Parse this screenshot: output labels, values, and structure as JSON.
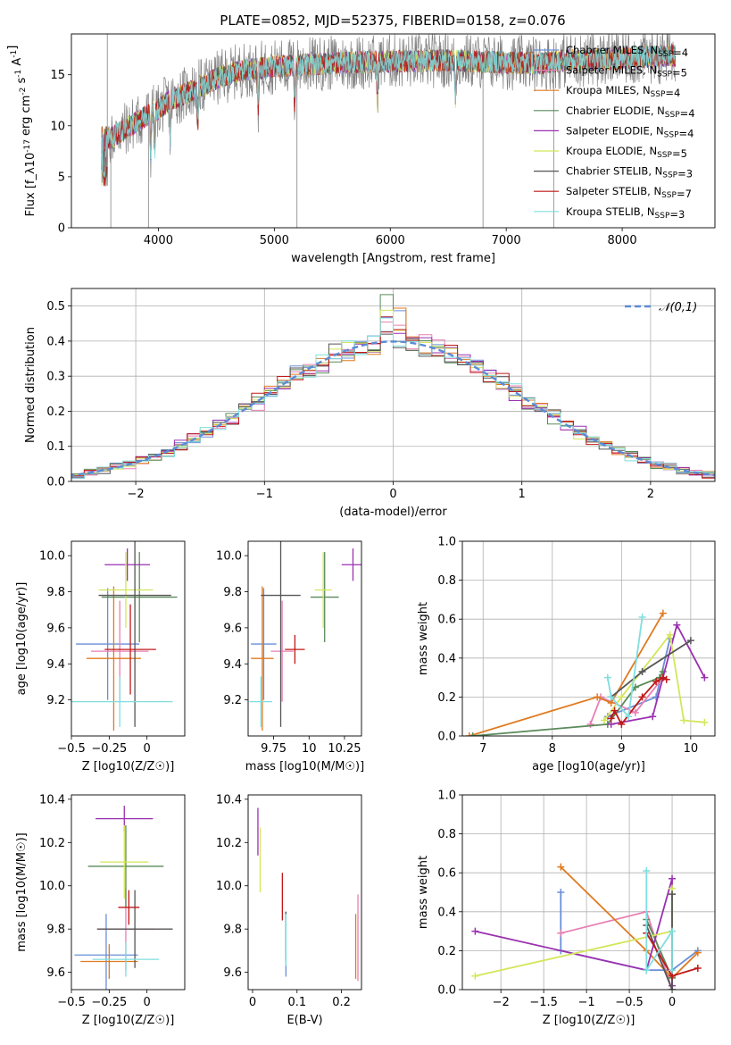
{
  "figure": {
    "title": "PLATE=0852, MJD=52375, FIBERID=0158, z=0.076"
  },
  "legend_models": [
    {
      "imf": "Chabrier",
      "lib": "MILES",
      "n": 4,
      "color": "#6a8fd8"
    },
    {
      "imf": "Salpeter",
      "lib": "MILES",
      "n": 5,
      "color": "#e87fb3"
    },
    {
      "imf": "Kroupa",
      "lib": "MILES",
      "n": 4,
      "color": "#e07b20"
    },
    {
      "imf": "Chabrier",
      "lib": "ELODIE",
      "n": 4,
      "color": "#5a8a5a"
    },
    {
      "imf": "Salpeter",
      "lib": "ELODIE",
      "n": 4,
      "color": "#9b30b0"
    },
    {
      "imf": "Kroupa",
      "lib": "ELODIE",
      "n": 5,
      "color": "#d4e65a"
    },
    {
      "imf": "Chabrier",
      "lib": "STELIB",
      "n": 3,
      "color": "#555555"
    },
    {
      "imf": "Salpeter",
      "lib": "STELIB",
      "n": 7,
      "color": "#c01818"
    },
    {
      "imf": "Kroupa",
      "lib": "STELIB",
      "n": 3,
      "color": "#80dede"
    }
  ],
  "chart_data": [
    {
      "id": "spectrum",
      "type": "line",
      "xlabel": "wavelength [Angstrom, rest frame]",
      "ylabel": "Flux [f_λ10^-17 erg cm^-2 s^-1 A^-1]",
      "xlim": [
        3250,
        8800
      ],
      "ylim": [
        0,
        19
      ],
      "xticks": [
        4000,
        5000,
        6000,
        7000,
        8000
      ],
      "yticks": [
        0,
        5,
        10,
        15
      ],
      "data_color": "#808080",
      "continuum": {
        "x": [
          3550,
          3700,
          3900,
          4000,
          4100,
          4300,
          4500,
          4700,
          5000,
          5300,
          5600,
          6000,
          6500,
          7000,
          7300,
          7500,
          7800,
          8000,
          8300,
          8450
        ],
        "y": [
          8.5,
          9.6,
          11.0,
          11.6,
          12.5,
          13.5,
          14.6,
          15.4,
          15.8,
          16.0,
          16.2,
          16.3,
          16.4,
          16.2,
          16.1,
          16.4,
          16.5,
          16.6,
          16.8,
          16.9
        ]
      },
      "legend_location": "upper right",
      "grid": false
    },
    {
      "id": "residuals",
      "type": "bar",
      "xlabel": "(data-model)/error",
      "ylabel": "Normed distribution",
      "xlim": [
        -2.5,
        2.5
      ],
      "ylim": [
        0,
        0.55
      ],
      "xticks": [
        -2,
        -1,
        0,
        1,
        2
      ],
      "yticks": [
        0.0,
        0.1,
        0.2,
        0.3,
        0.4,
        0.5
      ],
      "bin_width": 0.1,
      "legend": [
        {
          "label": "N(0,1)",
          "color": "#5b8bd6"
        }
      ],
      "legend_location": "upper right",
      "grid": true
    },
    {
      "id": "age_vs_Z",
      "type": "scatter",
      "xlabel": "Z [log10(Z/Z☉)]",
      "ylabel": "age [log10(age/yr)]",
      "xlim": [
        -0.5,
        0.25
      ],
      "ylim": [
        9.0,
        10.08
      ],
      "xticks": [
        -0.5,
        -0.25,
        0.0
      ],
      "yticks": [
        9.2,
        9.4,
        9.6,
        9.8,
        10.0
      ],
      "points": [
        {
          "x": -0.26,
          "y": 9.51,
          "xerr": 0.21,
          "yerr": 0.31,
          "model": 0
        },
        {
          "x": -0.18,
          "y": 9.47,
          "xerr": 0.19,
          "yerr": 0.28,
          "model": 1
        },
        {
          "x": -0.22,
          "y": 9.43,
          "xerr": 0.18,
          "yerr": 0.4,
          "model": 2
        },
        {
          "x": -0.05,
          "y": 9.77,
          "xerr": 0.25,
          "yerr": 0.25,
          "model": 3
        },
        {
          "x": -0.13,
          "y": 9.95,
          "xerr": 0.15,
          "yerr": 0.09,
          "model": 4
        },
        {
          "x": -0.14,
          "y": 9.81,
          "xerr": 0.18,
          "yerr": 0.21,
          "model": 5
        },
        {
          "x": -0.08,
          "y": 9.78,
          "xerr": 0.24,
          "yerr": 0.73,
          "model": 6
        },
        {
          "x": -0.11,
          "y": 9.48,
          "xerr": 0.17,
          "yerr": 0.25,
          "model": 7
        },
        {
          "x": -0.18,
          "y": 9.19,
          "xerr": 0.35,
          "yerr": 0.14,
          "model": 8
        }
      ]
    },
    {
      "id": "age_vs_mass",
      "type": "scatter",
      "xlabel": "mass [log10(M/M☉)]",
      "ylabel": "",
      "xlim": [
        9.57,
        10.37
      ],
      "ylim": [
        9.0,
        10.08
      ],
      "xticks": [
        9.75,
        10.0,
        10.25
      ],
      "yticks": [
        9.2,
        9.4,
        9.6,
        9.8,
        10.0
      ],
      "points": [
        {
          "x": 9.68,
          "y": 9.51,
          "xerr": 0.09,
          "yerr": 0.31,
          "model": 0
        },
        {
          "x": 9.81,
          "y": 9.47,
          "xerr": 0.08,
          "yerr": 0.28,
          "model": 1
        },
        {
          "x": 9.67,
          "y": 9.43,
          "xerr": 0.08,
          "yerr": 0.4,
          "model": 2
        },
        {
          "x": 10.11,
          "y": 9.77,
          "xerr": 0.1,
          "yerr": 0.25,
          "model": 3
        },
        {
          "x": 10.31,
          "y": 9.95,
          "xerr": 0.08,
          "yerr": 0.09,
          "model": 4
        },
        {
          "x": 10.1,
          "y": 9.81,
          "xerr": 0.06,
          "yerr": 0.21,
          "model": 5
        },
        {
          "x": 9.8,
          "y": 9.78,
          "xerr": 0.14,
          "yerr": 0.73,
          "model": 6
        },
        {
          "x": 9.9,
          "y": 9.48,
          "xerr": 0.07,
          "yerr": 0.08,
          "model": 7
        },
        {
          "x": 9.66,
          "y": 9.19,
          "xerr": 0.08,
          "yerr": 0.14,
          "model": 8
        }
      ]
    },
    {
      "id": "massweight_vs_age",
      "type": "line",
      "xlabel": "age [log10(age/yr)]",
      "ylabel": "mass weight",
      "xlim": [
        6.7,
        10.35
      ],
      "ylim": [
        0,
        1.0
      ],
      "xticks": [
        7,
        8,
        9,
        10
      ],
      "yticks": [
        0.0,
        0.2,
        0.4,
        0.6,
        0.8,
        1.0
      ],
      "grid": true,
      "series": [
        {
          "model": 0,
          "x": [
            8.8,
            9.5,
            9.7
          ],
          "y": [
            0.1,
            0.2,
            0.5
          ]
        },
        {
          "model": 1,
          "x": [
            8.55,
            8.7,
            9.2,
            9.6
          ],
          "y": [
            0.06,
            0.2,
            0.12,
            0.3
          ]
        },
        {
          "model": 2,
          "x": [
            6.8,
            8.65,
            8.85,
            9.6
          ],
          "y": [
            0.0,
            0.2,
            0.17,
            0.63
          ]
        },
        {
          "model": 3,
          "x": [
            6.85,
            8.8,
            9.2,
            9.55,
            9.6
          ],
          "y": [
            0.0,
            0.06,
            0.25,
            0.3,
            0.33
          ]
        },
        {
          "model": 4,
          "x": [
            8.85,
            9.45,
            9.8,
            10.2
          ],
          "y": [
            0.06,
            0.1,
            0.57,
            0.3
          ]
        },
        {
          "model": 5,
          "x": [
            8.75,
            9.0,
            9.7,
            9.9,
            10.2
          ],
          "y": [
            0.08,
            0.2,
            0.52,
            0.08,
            0.07
          ]
        },
        {
          "model": 6,
          "x": [
            8.85,
            9.3,
            10.0
          ],
          "y": [
            0.2,
            0.33,
            0.49
          ]
        },
        {
          "model": 7,
          "x": [
            8.85,
            8.9,
            9.0,
            9.3,
            9.5,
            9.6,
            9.65
          ],
          "y": [
            0.09,
            0.13,
            0.06,
            0.2,
            0.28,
            0.3,
            0.29
          ]
        },
        {
          "model": 8,
          "x": [
            8.8,
            8.85,
            9.1,
            9.3
          ],
          "y": [
            0.3,
            0.2,
            0.1,
            0.61
          ]
        }
      ]
    },
    {
      "id": "mass_vs_Z",
      "type": "scatter",
      "xlabel": "Z [log10(Z/Z☉)]",
      "ylabel": "mass [log10(M/M☉)]",
      "xlim": [
        -0.5,
        0.25
      ],
      "ylim": [
        9.52,
        10.42
      ],
      "xticks": [
        -0.5,
        -0.25,
        0.0
      ],
      "yticks": [
        9.6,
        9.8,
        10.0,
        10.2,
        10.4
      ],
      "points": [
        {
          "x": -0.27,
          "y": 9.68,
          "xerr": 0.21,
          "yerr": 0.19,
          "model": 0
        },
        {
          "x": -0.14,
          "y": 9.8,
          "xerr": 0.19,
          "yerr": 0.19,
          "model": 1
        },
        {
          "x": -0.25,
          "y": 9.65,
          "xerr": 0.19,
          "yerr": 0.08,
          "model": 2
        },
        {
          "x": -0.14,
          "y": 10.09,
          "xerr": 0.25,
          "yerr": 0.19,
          "model": 3
        },
        {
          "x": -0.15,
          "y": 10.31,
          "xerr": 0.19,
          "yerr": 0.06,
          "model": 4
        },
        {
          "x": -0.15,
          "y": 10.11,
          "xerr": 0.16,
          "yerr": 0.17,
          "model": 5
        },
        {
          "x": -0.08,
          "y": 9.8,
          "xerr": 0.25,
          "yerr": 0.18,
          "model": 6
        },
        {
          "x": -0.12,
          "y": 9.9,
          "xerr": 0.07,
          "yerr": 0.08,
          "model": 7
        },
        {
          "x": -0.14,
          "y": 9.66,
          "xerr": 0.22,
          "yerr": 0.08,
          "model": 8
        }
      ]
    },
    {
      "id": "mass_vs_ebv",
      "type": "scatter",
      "xlabel": "E(B-V)",
      "ylabel": "",
      "xlim": [
        -0.01,
        0.245
      ],
      "ylim": [
        9.52,
        10.42
      ],
      "xticks": [
        0.0,
        0.1,
        0.2
      ],
      "yticks": [
        9.6,
        9.8,
        10.0,
        10.2,
        10.4
      ],
      "points": [
        {
          "x": 0.075,
          "y": 9.73,
          "xerr": 0.0,
          "yerr": 0.15,
          "model": 0
        },
        {
          "x": 0.237,
          "y": 9.76,
          "xerr": 0.0,
          "yerr": 0.2,
          "model": 1
        },
        {
          "x": 0.232,
          "y": 9.72,
          "xerr": 0.0,
          "yerr": 0.15,
          "model": 2
        },
        {
          "x": 0.075,
          "y": 9.77,
          "xerr": 0.0,
          "yerr": 0.11,
          "model": 3
        },
        {
          "x": 0.012,
          "y": 10.25,
          "xerr": 0.0,
          "yerr": 0.11,
          "model": 4
        },
        {
          "x": 0.017,
          "y": 10.12,
          "xerr": 0.0,
          "yerr": 0.15,
          "model": 5
        },
        {
          "x": 0.075,
          "y": 9.77,
          "xerr": 0.0,
          "yerr": 0.11,
          "model": 6
        },
        {
          "x": 0.067,
          "y": 9.95,
          "xerr": 0.0,
          "yerr": 0.11,
          "model": 7
        },
        {
          "x": 0.075,
          "y": 9.75,
          "xerr": 0.0,
          "yerr": 0.12,
          "model": 8
        }
      ]
    },
    {
      "id": "massweight_vs_Z",
      "type": "line",
      "xlabel": "Z [log10(Z/Z☉)]",
      "ylabel": "mass weight",
      "xlim": [
        -2.45,
        0.5
      ],
      "ylim": [
        0,
        1.0
      ],
      "xticks": [
        -2.0,
        -1.5,
        -1.0,
        -0.5,
        0.0
      ],
      "yticks": [
        0.0,
        0.2,
        0.4,
        0.6,
        0.8,
        1.0
      ],
      "grid": true,
      "series": [
        {
          "model": 0,
          "x": [
            -1.3,
            -1.3,
            -0.3,
            0.0,
            0.3
          ],
          "y": [
            0.5,
            0.2,
            0.1,
            0.1,
            0.2
          ]
        },
        {
          "model": 1,
          "x": [
            -1.3,
            -0.3,
            0.0
          ],
          "y": [
            0.29,
            0.4,
            0.0
          ]
        },
        {
          "model": 2,
          "x": [
            -1.3,
            -0.3,
            0.0,
            0.3
          ],
          "y": [
            0.63,
            0.2,
            0.06,
            0.19
          ]
        },
        {
          "model": 3,
          "x": [
            -0.3,
            0.0
          ],
          "y": [
            0.36,
            0.06
          ]
        },
        {
          "model": 4,
          "x": [
            -2.3,
            -0.3,
            0.0,
            0.0
          ],
          "y": [
            0.3,
            0.1,
            0.57,
            0.02
          ]
        },
        {
          "model": 5,
          "x": [
            -2.3,
            0.0,
            0.0
          ],
          "y": [
            0.07,
            0.3,
            0.52
          ]
        },
        {
          "model": 6,
          "x": [
            -0.3,
            0.0,
            0.0
          ],
          "y": [
            0.33,
            0.0,
            0.49
          ]
        },
        {
          "model": 7,
          "x": [
            -0.3,
            0.0,
            0.3
          ],
          "y": [
            0.29,
            0.07,
            0.11
          ]
        },
        {
          "model": 8,
          "x": [
            -0.3,
            -0.3,
            0.0,
            0.0
          ],
          "y": [
            0.61,
            0.1,
            0.3,
            0.1
          ]
        }
      ]
    }
  ]
}
